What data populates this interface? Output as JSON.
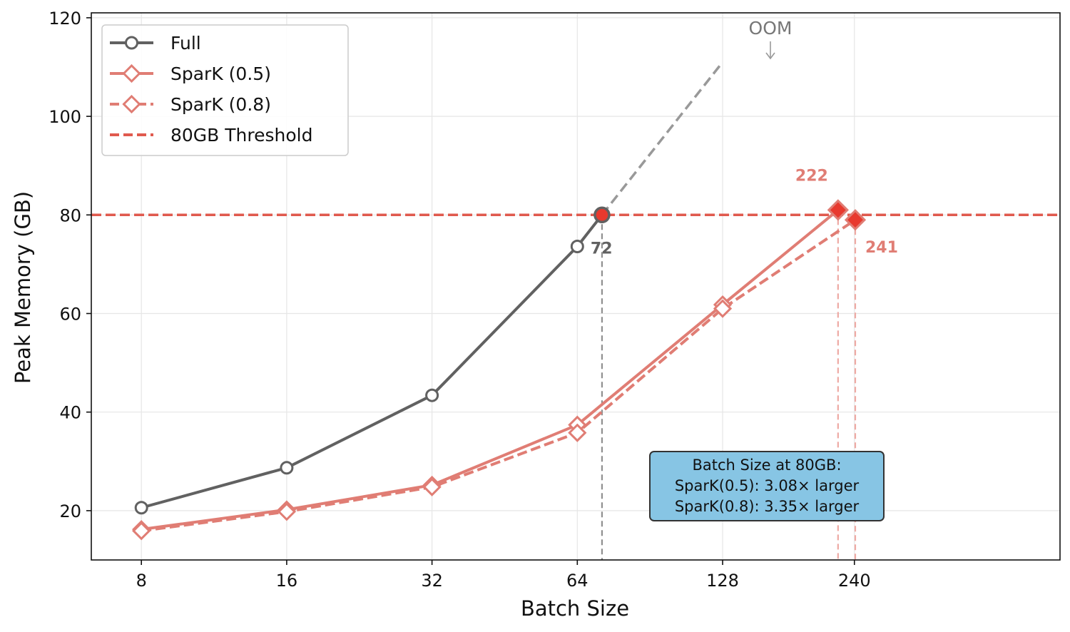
{
  "chart_data": {
    "type": "line",
    "xlabel": "Batch Size",
    "ylabel": "Peak Memory (GB)",
    "x_scale": "log2",
    "xlim": [
      6.3,
      640
    ],
    "ylim": [
      10,
      121
    ],
    "x_ticks": [
      8,
      16,
      32,
      64,
      128,
      240
    ],
    "x_tick_labels": [
      "8",
      "16",
      "32",
      "64",
      "128",
      "240"
    ],
    "y_ticks": [
      20,
      40,
      60,
      80,
      100,
      120
    ],
    "y_tick_labels": [
      "20",
      "40",
      "60",
      "80",
      "100",
      "120"
    ],
    "grid": true,
    "legend_placement": "top-left",
    "colors": {
      "full": "#616161",
      "spark": "#e07d74",
      "threshold": "#e05a4e",
      "marker_fill": "#e8392e",
      "oom": "#999999",
      "annotation_box": "#87c5e4"
    },
    "series": [
      {
        "name": "Full",
        "style": "solid-circle",
        "x": [
          8,
          16,
          32,
          64
        ],
        "y": [
          20.6,
          28.7,
          43.4,
          73.6
        ]
      },
      {
        "name": "SparK (0.5)",
        "style": "solid-diamond",
        "x": [
          8,
          16,
          32,
          64,
          128
        ],
        "y": [
          16.2,
          20.2,
          25.2,
          37.4,
          61.8
        ]
      },
      {
        "name": "SparK (0.8)",
        "style": "dashed-diamond",
        "x": [
          8,
          16,
          32,
          64,
          128
        ],
        "y": [
          15.9,
          19.8,
          24.8,
          35.8,
          61.0
        ]
      }
    ],
    "threshold": {
      "name": "80GB Threshold",
      "y": 80
    },
    "oom_extension": {
      "from": [
        72,
        80
      ],
      "to": [
        128,
        111
      ]
    },
    "crossing_points": [
      {
        "series": "Full",
        "x": 72,
        "y": 80,
        "label": "72"
      },
      {
        "series": "SparK (0.5)",
        "x": 222,
        "y": 81,
        "label": "222"
      },
      {
        "series": "SparK (0.8)",
        "x": 241,
        "y": 79,
        "label": "241"
      }
    ],
    "annotations": {
      "oom": "OOM",
      "box_lines": [
        "Batch Size at 80GB:",
        "SparK(0.5): 3.08× larger",
        "SparK(0.8): 3.35× larger"
      ]
    }
  }
}
